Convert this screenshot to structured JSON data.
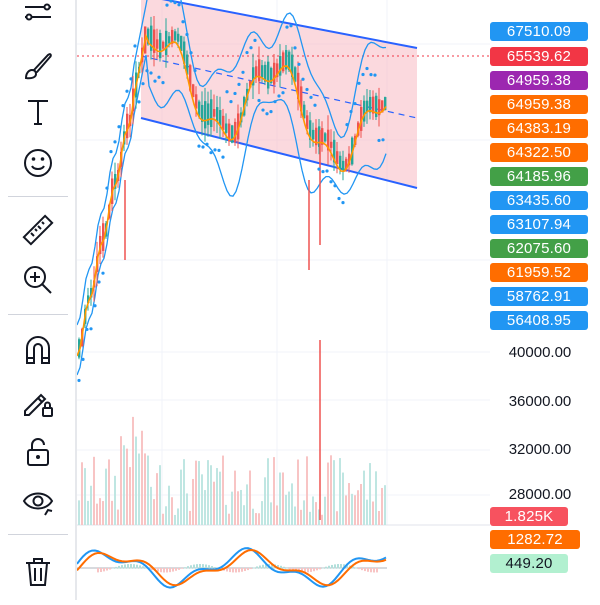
{
  "toolbar": {
    "tools": [
      {
        "name": "trend-line-tools-icon"
      },
      {
        "name": "brush-icon"
      },
      {
        "name": "text-icon"
      },
      {
        "name": "emoji-icon"
      },
      {
        "name": "ruler-icon"
      },
      {
        "name": "zoom-in-icon"
      },
      {
        "name": "magnet-icon"
      },
      {
        "name": "pencil-lock-icon"
      },
      {
        "name": "unlock-icon"
      },
      {
        "name": "eye-icon"
      },
      {
        "name": "trash-icon"
      }
    ]
  },
  "price_badges": [
    {
      "label": "67510.09",
      "color": "#2196f3"
    },
    {
      "label": "65539.62",
      "color": "#f23645"
    },
    {
      "label": "64959.38",
      "color": "#9c27b0"
    },
    {
      "label": "64959.38",
      "color": "#ff6d00"
    },
    {
      "label": "64383.19",
      "color": "#ff6d00"
    },
    {
      "label": "64322.50",
      "color": "#ff6d00"
    },
    {
      "label": "64185.96",
      "color": "#43a047"
    },
    {
      "label": "63435.60",
      "color": "#2196f3"
    },
    {
      "label": "63107.94",
      "color": "#2196f3"
    },
    {
      "label": "62075.60",
      "color": "#43a047"
    },
    {
      "label": "61959.52",
      "color": "#ff6d00"
    },
    {
      "label": "58762.91",
      "color": "#2196f3"
    },
    {
      "label": "56408.95",
      "color": "#2196f3"
    }
  ],
  "price_scale_labels": [
    "40000.00",
    "36000.00",
    "32000.00",
    "28000.00"
  ],
  "indicator_badges": [
    {
      "label": "1.825K",
      "color": "#f7525f"
    },
    {
      "label": "1282.72",
      "color": "#ff6d00"
    },
    {
      "label": "449.20",
      "color": "#b2f0d0",
      "text_color": "#131722"
    }
  ],
  "colors": {
    "up": "#26a69a",
    "down": "#ef5350",
    "channel_line": "#2962ff",
    "channel_fill": "#f8c0c8",
    "bollinger": "#2196f3",
    "ma": "#ff9800",
    "macd_line": "#2196f3",
    "signal_line": "#ff6d00"
  }
}
